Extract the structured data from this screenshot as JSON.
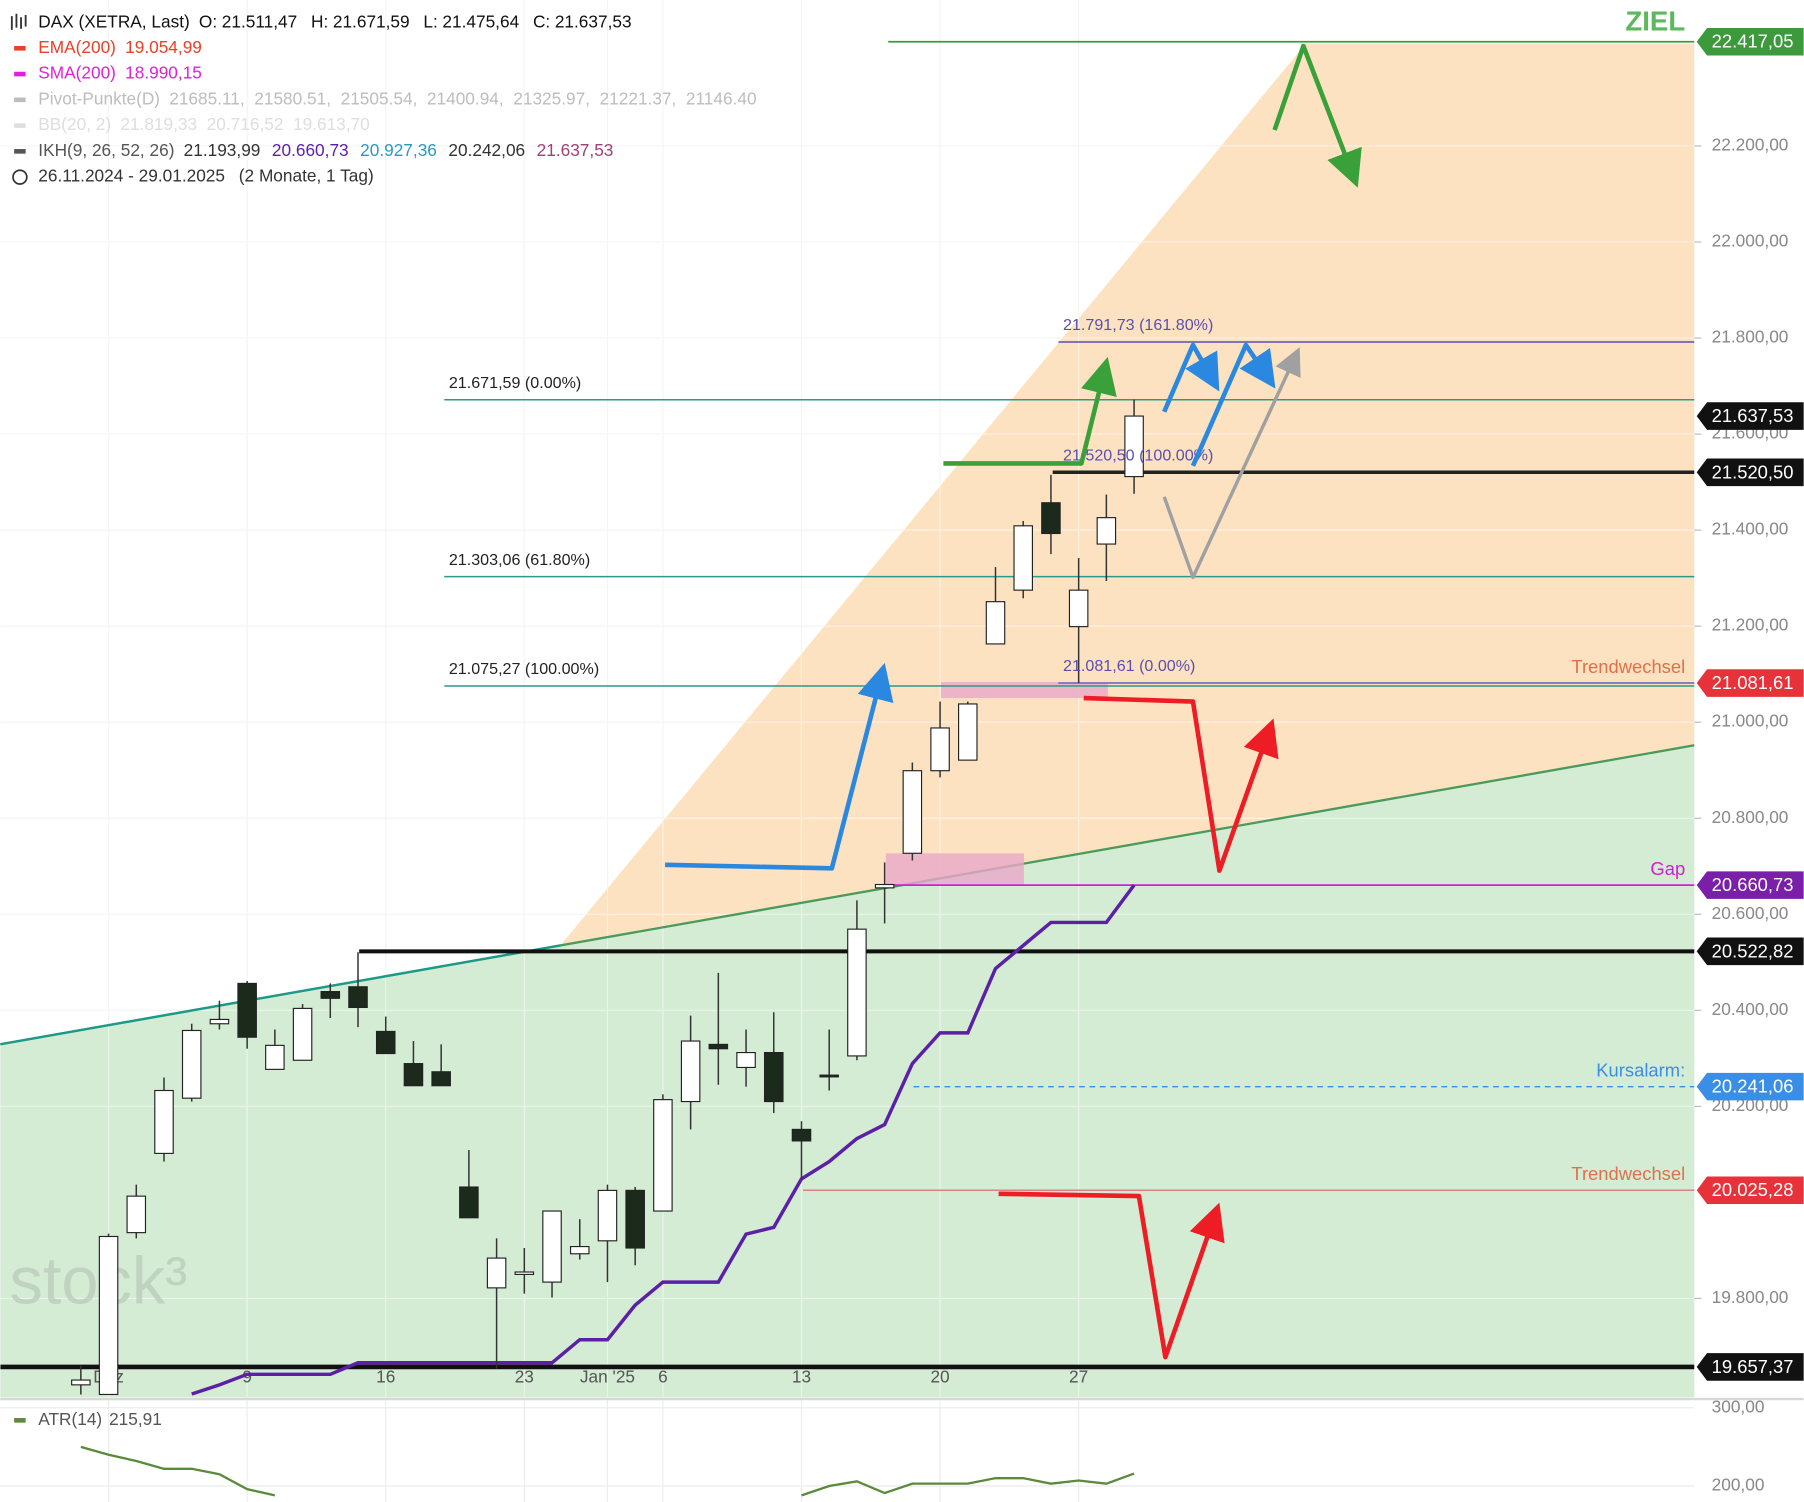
{
  "chart_data": [
    {
      "type": "candlestick",
      "title": "DAX (XETRA, Last)",
      "ohlc_text": [
        {
          "label": "O:",
          "text": "21.511,47"
        },
        {
          "label": "H:",
          "text": "21.671,59"
        },
        {
          "label": "L:",
          "text": "21.475,64"
        },
        {
          "label": "C:",
          "text": "21.637,53"
        }
      ],
      "legend": [
        {
          "name": "EMA(200)",
          "color": "#e8402a",
          "parts": [
            {
              "text": "19.054,99",
              "color": "#e8402a"
            }
          ]
        },
        {
          "name": "SMA(200)",
          "color": "#e020d8",
          "parts": [
            {
              "text": "18.990,15",
              "color": "#e020d8"
            }
          ]
        },
        {
          "name": "Pivot-Punkte(D)",
          "color": "#bdbdbd",
          "parts": [
            {
              "text": "21685.11,  21580.51,  21505.54,  21400.94,  21325.97,  21221.37,  21146.40",
              "color": "#bdbdbd"
            }
          ]
        },
        {
          "name": "BB(20, 2)",
          "color": "#dedede",
          "parts": [
            {
              "text": "21.819,33  20.716,52  19.613,70",
              "color": "#dedede"
            }
          ]
        },
        {
          "name": "IKH(9, 26, 52, 26)",
          "color": "#555555",
          "parts": [
            {
              "text": "21.193,99",
              "color": "#333333"
            },
            {
              "text": "20.660,73",
              "color": "#5b1fa8"
            },
            {
              "text": "20.927,36",
              "color": "#2a9ac0"
            },
            {
              "text": "20.242,06",
              "color": "#333333"
            },
            {
              "text": "21.637,53",
              "color": "#a0407a"
            }
          ]
        }
      ],
      "period": [
        "26.11.2024 - 29.01.2025",
        "(2 Monate, 1 Tag)"
      ],
      "watermark": "stock³",
      "categories": [
        null,
        "Dez",
        null,
        null,
        null,
        null,
        "9",
        null,
        null,
        null,
        null,
        "16",
        null,
        null,
        null,
        null,
        "23",
        null,
        null,
        "Jan '25",
        null,
        "6",
        null,
        null,
        null,
        null,
        "13",
        null,
        null,
        null,
        null,
        "20",
        null,
        null,
        null,
        null,
        "27",
        null,
        null
      ],
      "open": [
        19620,
        19600,
        19937,
        20102,
        20217,
        20372,
        20456,
        20277,
        20296,
        20439,
        20449,
        20356,
        20289,
        20272,
        20032,
        19822,
        19850,
        19834,
        19893,
        19920,
        20025,
        19982,
        20210,
        20329,
        20281,
        20312,
        20152,
        20265,
        20305,
        20655,
        20727,
        20899,
        20921,
        21163,
        21275,
        21457,
        21199,
        21371,
        21511.47
      ],
      "high": [
        19660,
        19935,
        20037,
        20260,
        20372,
        20420,
        20461,
        20360,
        20413,
        20456,
        20521,
        20387,
        20336,
        20329,
        20109,
        19925,
        19905,
        19982,
        19965,
        20037,
        20032,
        20225,
        20389,
        20478,
        20360,
        20396,
        20169,
        20360,
        20629,
        20708,
        20916,
        21043,
        21043,
        21323,
        21419,
        21515,
        21342,
        21474,
        21671.59
      ],
      "low": [
        19600,
        19600,
        19925,
        20085,
        20210,
        20360,
        20320,
        20277,
        20296,
        20384,
        20365,
        20310,
        20243,
        20243,
        19968,
        19654,
        19810,
        19802,
        19881,
        19834,
        19869,
        19982,
        20152,
        20245,
        20241,
        20186,
        20049,
        20233,
        20296,
        20581,
        20712,
        20885,
        20921,
        21163,
        21258,
        21350,
        21081.61,
        21294,
        21475.64
      ],
      "close": [
        19630,
        19929,
        20013,
        20233,
        20358,
        20381,
        20344,
        20327,
        20404,
        20425,
        20406,
        20310,
        20243,
        20243,
        19968,
        19884,
        19855,
        19982,
        19908,
        20025,
        19905,
        20214,
        20336,
        20320,
        20312,
        20210,
        20128,
        20262,
        20569,
        20662,
        20899,
        20988,
        21038,
        21251,
        21409,
        21393,
        21275,
        21426,
        21637.53
      ],
      "up_color": "#ffffff",
      "down_color": "#1c2a1c",
      "wick_color": "#333333",
      "ikh_line": {
        "color": "#5b1fa8",
        "values": [
          null,
          null,
          null,
          null,
          19601,
          19620,
          19642,
          19642,
          19642,
          19642,
          19666,
          19666,
          19666,
          19666,
          19666,
          19666,
          19666,
          19666,
          19714,
          19714,
          19786,
          19834,
          19834,
          19834,
          19934,
          19948,
          20049,
          20085,
          20133,
          20162,
          20289,
          20353,
          20353,
          20487,
          20535,
          20583,
          20583,
          20583,
          20660.73
        ]
      },
      "ylim": [
        19594,
        22504
      ],
      "yticks": [
        {
          "value": 19800,
          "label": "19.800,00"
        },
        {
          "value": 20200,
          "label": "20.200,00"
        },
        {
          "value": 20400,
          "label": "20.400,00"
        },
        {
          "value": 20600,
          "label": "20.600,00"
        },
        {
          "value": 20800,
          "label": "20.800,00"
        },
        {
          "value": 21000,
          "label": "21.000,00"
        },
        {
          "value": 21200,
          "label": "21.200,00"
        },
        {
          "value": 21400,
          "label": "21.400,00"
        },
        {
          "value": 21600,
          "label": "21.600,00"
        },
        {
          "value": 21800,
          "label": "21.800,00"
        },
        {
          "value": 22000,
          "label": "22.000,00"
        },
        {
          "value": 22200,
          "label": "22.200,00"
        }
      ],
      "grid": true,
      "levels": [
        {
          "value": 22417.05,
          "label": "22.417,05",
          "color": "#3c9a3c",
          "line_color": "#3c9a3c",
          "note": "ZIEL",
          "note_color": "#5cb85c"
        },
        {
          "value": 21637.53,
          "label": "21.637,53",
          "color": "#111111"
        },
        {
          "value": 21520.5,
          "label": "21.520,50",
          "color": "#111111",
          "line_color": "#222222"
        },
        {
          "value": 21081.61,
          "label": "21.081,61",
          "color": "#e8323a",
          "line_color": "#7d7dc8",
          "note": "Trendwechsel",
          "note_color": "#e0704a"
        },
        {
          "value": 20660.73,
          "label": "20.660,73",
          "color": "#7a1fa8",
          "line_color": "#d020d0",
          "note": "Gap",
          "note_color": "#d020d0"
        },
        {
          "value": 20522.82,
          "label": "20.522,82",
          "color": "#111111",
          "line_color": "#111111"
        },
        {
          "value": 20241.06,
          "label": "20.241,06",
          "color": "#3a8ee6",
          "line_color": "#3a8ee6",
          "dashed": true,
          "note": "Kursalarm:",
          "note_color": "#3a8ee6"
        },
        {
          "value": 20025.28,
          "label": "20.025,28",
          "color": "#e8323a",
          "line_color": "#e08080",
          "note": "Trendwechsel",
          "note_color": "#e0704a"
        },
        {
          "value": 19657.37,
          "label": "19.657,37",
          "color": "#111111",
          "line_color": "#111111"
        }
      ],
      "fibs": [
        {
          "value": 21791.73,
          "text": "21.791,73 (161.80%)",
          "color": "#5a4fb0"
        },
        {
          "value": 21671.59,
          "text": "21.671,59 (0.00%)",
          "color": "#222222"
        },
        {
          "value": 21520.5,
          "text": "21.520,50 (100.00%)",
          "color": "#5a4fb0"
        },
        {
          "value": 21303.06,
          "text": "21.303,06 (61.80%)",
          "color": "#222222"
        },
        {
          "value": 21081.61,
          "text": "21.081,61 (0.00%)",
          "color": "#5a4fb0"
        },
        {
          "value": 21075.27,
          "text": "21.075,27 (100.00%)",
          "color": "#222222"
        }
      ]
    },
    {
      "type": "line",
      "title": "ATR(14)",
      "value_text": "215,91",
      "color": "#5b8a3c",
      "values": [
        250,
        240,
        232,
        222,
        222,
        215,
        196,
        188,
        null,
        null,
        null,
        null,
        null,
        null,
        null,
        null,
        null,
        null,
        null,
        null,
        null,
        null,
        null,
        null,
        null,
        null,
        188,
        200,
        206,
        191,
        203,
        203,
        203,
        210,
        210,
        203,
        207,
        203,
        215.91
      ],
      "ylim": [
        181,
        309
      ],
      "yticks": [
        {
          "value": 200,
          "label": "200,00"
        },
        {
          "value": 300,
          "label": "300,00"
        }
      ]
    }
  ]
}
